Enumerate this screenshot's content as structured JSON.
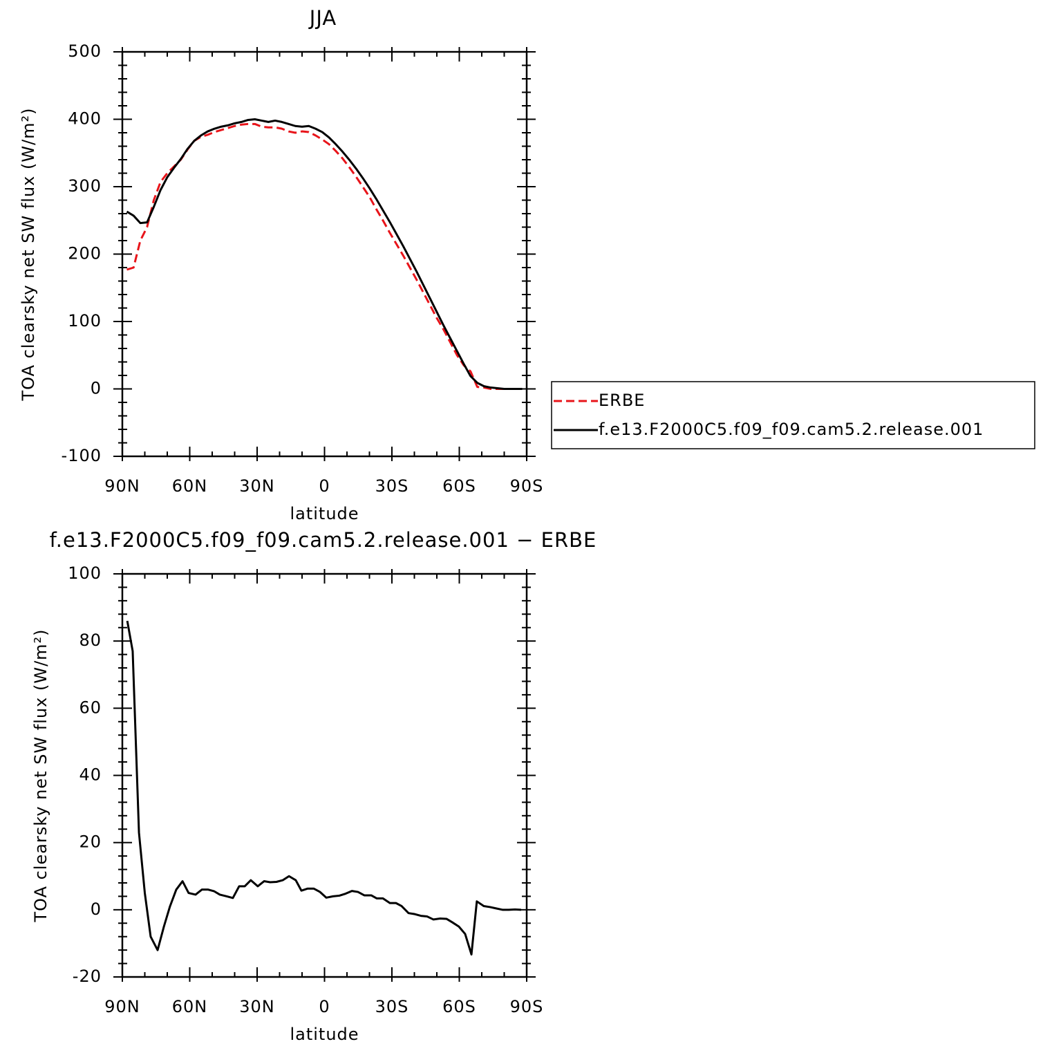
{
  "chart_data": [
    {
      "type": "line",
      "title": "JJA",
      "x_label": "latitude",
      "y_label": "TOA clearsky net SW flux (W/m²)",
      "xlim": [
        90,
        -90
      ],
      "xticks": [
        {
          "value": 90,
          "label": "90N"
        },
        {
          "value": 60,
          "label": "60N"
        },
        {
          "value": 30,
          "label": "30N"
        },
        0,
        {
          "value": -30,
          "label": "30S"
        },
        {
          "value": -60,
          "label": "60S"
        },
        {
          "value": -90,
          "label": "90S"
        }
      ],
      "ylim": [
        -100,
        500
      ],
      "yticks": [
        -100,
        0,
        100,
        200,
        300,
        400,
        500
      ],
      "legend": "right",
      "x": [
        88,
        85,
        82,
        79,
        76,
        73,
        70,
        67,
        64,
        61,
        58,
        55,
        52,
        49,
        46,
        43,
        40,
        37,
        34,
        31,
        28,
        25,
        22,
        19,
        16,
        13,
        10,
        7,
        4,
        1,
        -2,
        -5,
        -8,
        -11,
        -14,
        -17,
        -20,
        -23,
        -26,
        -29,
        -32,
        -35,
        -38,
        -41,
        -44,
        -47,
        -50,
        -53,
        -56,
        -59,
        -62,
        -65,
        -68,
        -71,
        -74,
        -77,
        -80,
        -83,
        -86,
        -88
      ],
      "series": [
        {
          "name": "ERBE",
          "color": "#e8141a",
          "linestyle": "dashed",
          "values": [
            177,
            180,
            220,
            240,
            280,
            307,
            320,
            330,
            340,
            355,
            368,
            374,
            377,
            381,
            384,
            387,
            390,
            392,
            393,
            393,
            389,
            388,
            388,
            386,
            382,
            380,
            382,
            381,
            376,
            370,
            363,
            353,
            342,
            329,
            315,
            300,
            285,
            267,
            250,
            232,
            215,
            198,
            180,
            162,
            143,
            124,
            105,
            88,
            69,
            50,
            35,
            26,
            3,
            2,
            0,
            0,
            0,
            0,
            0,
            0
          ]
        },
        {
          "name": "f.e13.F2000C5.f09_f09.cam5.2.release.001",
          "color": "#000000",
          "linestyle": "solid",
          "values": [
            263,
            257,
            246,
            247,
            270,
            295,
            314,
            328,
            341,
            356,
            368,
            376,
            382,
            386,
            389,
            391,
            394,
            396,
            399,
            400,
            398,
            396,
            398,
            396,
            393,
            390,
            389,
            390,
            386,
            381,
            373,
            363,
            352,
            340,
            327,
            313,
            298,
            282,
            265,
            248,
            230,
            212,
            193,
            174,
            154,
            134,
            114,
            94,
            75,
            56,
            37,
            19,
            9,
            4,
            2,
            1,
            0,
            0,
            0,
            0
          ]
        }
      ]
    },
    {
      "type": "line",
      "title": "f.e13.F2000C5.f09_f09.cam5.2.release.001 − ERBE",
      "x_label": "latitude",
      "y_label": "TOA clearsky net SW flux (W/m²)",
      "xlim": [
        90,
        -90
      ],
      "xticks": [
        {
          "value": 90,
          "label": "90N"
        },
        {
          "value": 60,
          "label": "60N"
        },
        {
          "value": 30,
          "label": "30N"
        },
        0,
        {
          "value": -30,
          "label": "30S"
        },
        {
          "value": -60,
          "label": "60S"
        },
        {
          "value": -90,
          "label": "90S"
        }
      ],
      "ylim": [
        -20,
        100
      ],
      "yticks": [
        -20,
        0,
        20,
        40,
        60,
        80,
        100
      ],
      "color": "#000000",
      "x": [
        87.8,
        85.4,
        82.6,
        80,
        77.4,
        74.3,
        71.5,
        68.8,
        66,
        63.2,
        60.5,
        57.4,
        54.6,
        51.8,
        49.1,
        46.6,
        43.5,
        40.8,
        38,
        35.5,
        32.8,
        29.7,
        26.9,
        24.2,
        21.4,
        18.6,
        15.8,
        12.8,
        10.3,
        7.5,
        4.8,
        2,
        -0.8,
        -3.8,
        -6.6,
        -9.4,
        -12.2,
        -14.9,
        -17.7,
        -20.8,
        -23.2,
        -26,
        -29.1,
        -31.8,
        -34.3,
        -37.4,
        -40.2,
        -42.9,
        -45.7,
        -48.5,
        -51.5,
        -54.3,
        -56.8,
        -59.8,
        -62.6,
        -65.4,
        -67.8,
        -70.9,
        -73.7,
        -76.4,
        -79.2,
        -82,
        -84.8,
        -87.5
      ],
      "values": [
        86,
        77,
        23,
        5,
        -8,
        -12,
        -5,
        1,
        6,
        8.5,
        5,
        4.5,
        6,
        6,
        5.5,
        4.5,
        4,
        3.5,
        7,
        7,
        8.8,
        7,
        8.5,
        8.2,
        8.3,
        8.8,
        10,
        8.8,
        5.7,
        6.3,
        6.3,
        5.3,
        3.6,
        4,
        4.2,
        4.8,
        5.6,
        5.3,
        4.3,
        4.3,
        3.4,
        3.4,
        2,
        2,
        1.1,
        -1,
        -1.3,
        -1.8,
        -2,
        -2.9,
        -2.6,
        -2.7,
        -3.7,
        -5,
        -7.2,
        -13.3,
        2.5,
        1.1,
        0.8,
        0.4,
        0,
        0,
        0.1,
        0
      ]
    }
  ]
}
